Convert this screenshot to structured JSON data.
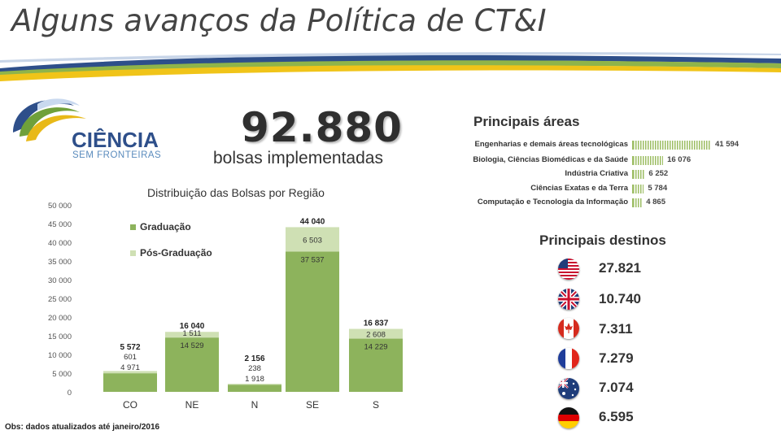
{
  "slide": {
    "title": "Alguns avanços da Política de CT&I",
    "headline_number": "92.880",
    "headline_text": "bolsas implementadas",
    "note": "Obs: dados atualizados até janeiro/2016",
    "logo": {
      "name_line1": "CIÊNCIA",
      "name_line2": "SEM FRONTEIRAS",
      "icon": "ciencia-sem-fronteiras-logo"
    }
  },
  "areas": {
    "title": "Principais áreas",
    "items": [
      {
        "label": "Engenharias e demais áreas tecnológicas",
        "value": 41594,
        "value_label": "41 594"
      },
      {
        "label": "Biologia, Ciências Biomédicas e da Saúde",
        "value": 16076,
        "value_label": "16 076"
      },
      {
        "label": "Indústria Criativa",
        "value": 6252,
        "value_label": "6 252"
      },
      {
        "label": "Ciências Exatas e da Terra",
        "value": 5784,
        "value_label": "5 784"
      },
      {
        "label": "Computação e Tecnologia da Informação",
        "value": 4865,
        "value_label": "4 865"
      }
    ]
  },
  "destinations": {
    "title": "Principais destinos",
    "items": [
      {
        "flag": "usa-flag-icon",
        "value": "27.821"
      },
      {
        "flag": "uk-flag-icon",
        "value": "10.740"
      },
      {
        "flag": "canada-flag-icon",
        "value": "7.311"
      },
      {
        "flag": "france-flag-icon",
        "value": "7.279"
      },
      {
        "flag": "australia-flag-icon",
        "value": "7.074"
      },
      {
        "flag": "germany-flag-icon",
        "value": "6.595"
      }
    ]
  },
  "chart_data": {
    "type": "bar",
    "stacked": true,
    "title": "Distribuição das Bolsas por Região",
    "categories": [
      "CO",
      "NE",
      "N",
      "SE",
      "S"
    ],
    "series": [
      {
        "name": "Graduação",
        "values": [
          4971,
          14529,
          1918,
          37537,
          14229
        ],
        "labels": [
          "4 971",
          "14 529",
          "1 918",
          "37 537",
          "14 229"
        ],
        "color": "#8db35c"
      },
      {
        "name": "Pós-Graduação",
        "values": [
          601,
          1511,
          238,
          6503,
          2608
        ],
        "labels": [
          "601",
          "1 511",
          "238",
          "6 503",
          "2 608"
        ],
        "color": "#cfe0b4"
      }
    ],
    "totals": [
      5572,
      16040,
      2156,
      44040,
      16837
    ],
    "total_labels": [
      "5 572",
      "16 040",
      "2 156",
      "44 040",
      "16 837"
    ],
    "ylim": [
      0,
      50000
    ],
    "yticks": [
      0,
      5000,
      10000,
      15000,
      20000,
      25000,
      30000,
      35000,
      40000,
      45000,
      50000
    ],
    "ytick_labels": [
      "0",
      "5 000",
      "10 000",
      "15 000",
      "20 000",
      "25 000",
      "30 000",
      "35 000",
      "40 000",
      "45 000",
      "50 000"
    ],
    "grid": false,
    "legend_position": "top-left"
  }
}
